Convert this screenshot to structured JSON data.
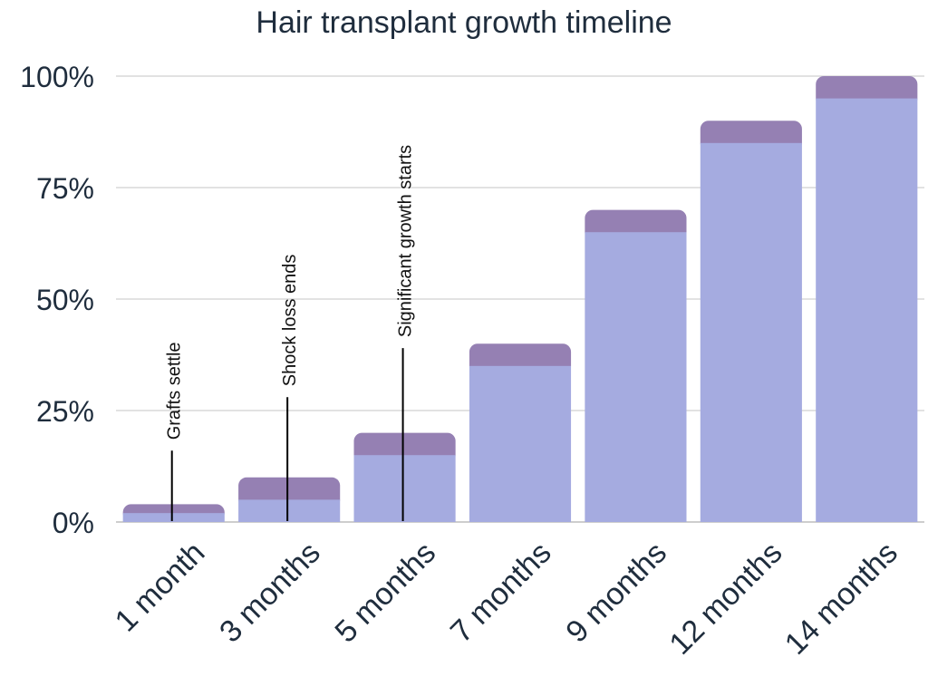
{
  "chart_data": {
    "type": "bar",
    "title": "Hair transplant growth timeline",
    "xlabel": "",
    "ylabel": "",
    "ylim": [
      0,
      100
    ],
    "y_ticks": [
      {
        "value": 0,
        "label": "0%"
      },
      {
        "value": 25,
        "label": "25%"
      },
      {
        "value": 50,
        "label": "50%"
      },
      {
        "value": 75,
        "label": "75%"
      },
      {
        "value": 100,
        "label": "100%"
      }
    ],
    "grid": true,
    "categories": [
      "1 month",
      "3 months",
      "5 months",
      "7 months",
      "9 months",
      "12 months",
      "14 months"
    ],
    "series": [
      {
        "values": [
          2,
          5,
          15,
          35,
          65,
          85,
          95
        ],
        "color": "#a5abe0"
      },
      {
        "values": [
          2,
          5,
          5,
          5,
          5,
          5,
          5
        ],
        "color": "#9580b3"
      }
    ],
    "annotations": [
      {
        "category": "1 month",
        "text": "Grafts settle",
        "line_top": 16
      },
      {
        "category": "3 months",
        "text": "Shock loss ends",
        "line_top": 28
      },
      {
        "category": "5 months",
        "text": "Significant growth starts",
        "line_top": 39
      }
    ]
  }
}
